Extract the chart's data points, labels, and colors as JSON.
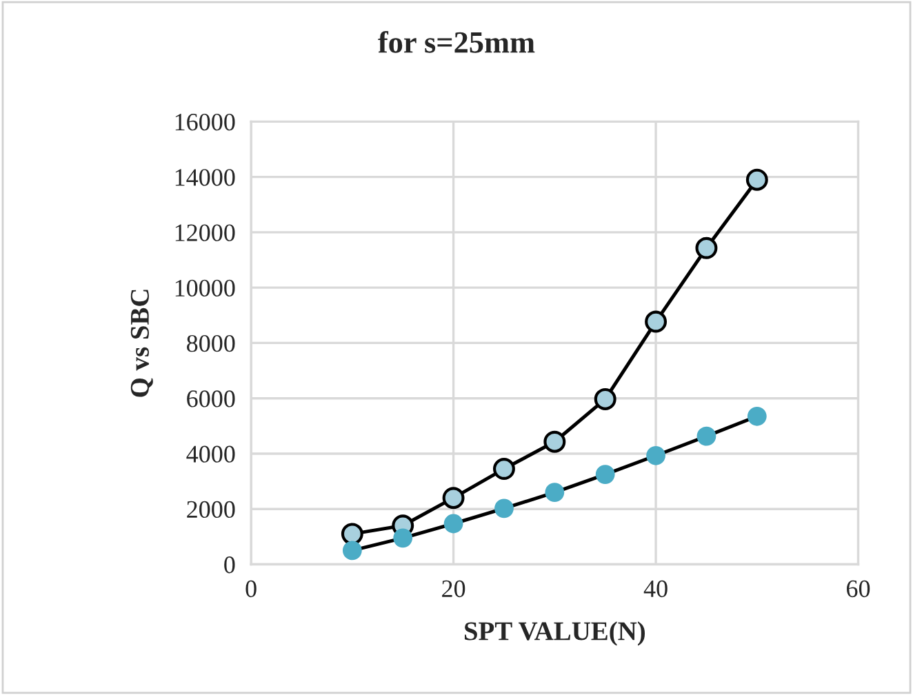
{
  "chart_data": {
    "type": "line",
    "title": "for s=25mm",
    "xlabel": "SPT VALUE(N)",
    "ylabel": "Q vs SBC",
    "x": [
      10,
      15,
      20,
      25,
      30,
      35,
      40,
      45,
      50
    ],
    "series": [
      {
        "color": "#a8d0de",
        "values": [
          1100,
          1400,
          2400,
          3450,
          4430,
          5970,
          8770,
          11430,
          13900
        ]
      },
      {
        "color": "#4bacc6",
        "values": [
          500,
          950,
          1470,
          2020,
          2600,
          3250,
          3930,
          4630,
          5350
        ]
      }
    ],
    "xlim": [
      0,
      60
    ],
    "xticks": [
      0,
      20,
      40,
      60
    ],
    "ylim": [
      0,
      16000
    ],
    "yticks": [
      0,
      2000,
      4000,
      6000,
      8000,
      10000,
      12000,
      14000,
      16000
    ],
    "grid": true,
    "marker": "circle",
    "line_style": "solid",
    "legend": false
  }
}
